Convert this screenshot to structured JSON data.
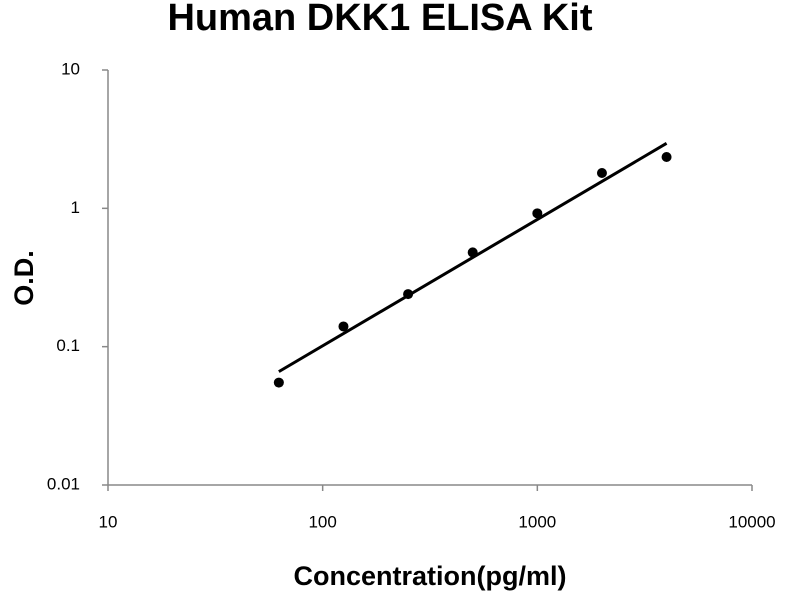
{
  "chart_data": {
    "type": "scatter",
    "title": "Human DKK1 ELISA Kit",
    "x_label": "Concentration(pg/ml)",
    "y_label": "O.D.",
    "x": [
      62.5,
      125,
      250,
      500,
      1000,
      2000,
      4000
    ],
    "series": [
      {
        "color": "#000000",
        "values": [
          0.055,
          0.14,
          0.24,
          0.48,
          0.92,
          1.8,
          2.35
        ]
      }
    ],
    "trendline": {
      "x": [
        62.5,
        4000
      ],
      "values": [
        0.066,
        2.95
      ],
      "color": "#000000"
    },
    "xlim": [
      10,
      10000
    ],
    "ylim": [
      0.01,
      10
    ],
    "xticks": [
      10,
      100,
      1000,
      10000
    ],
    "yticks": [
      0.01,
      0.1,
      1,
      10
    ],
    "x_scale": "log",
    "y_scale": "log",
    "grid": false
  }
}
